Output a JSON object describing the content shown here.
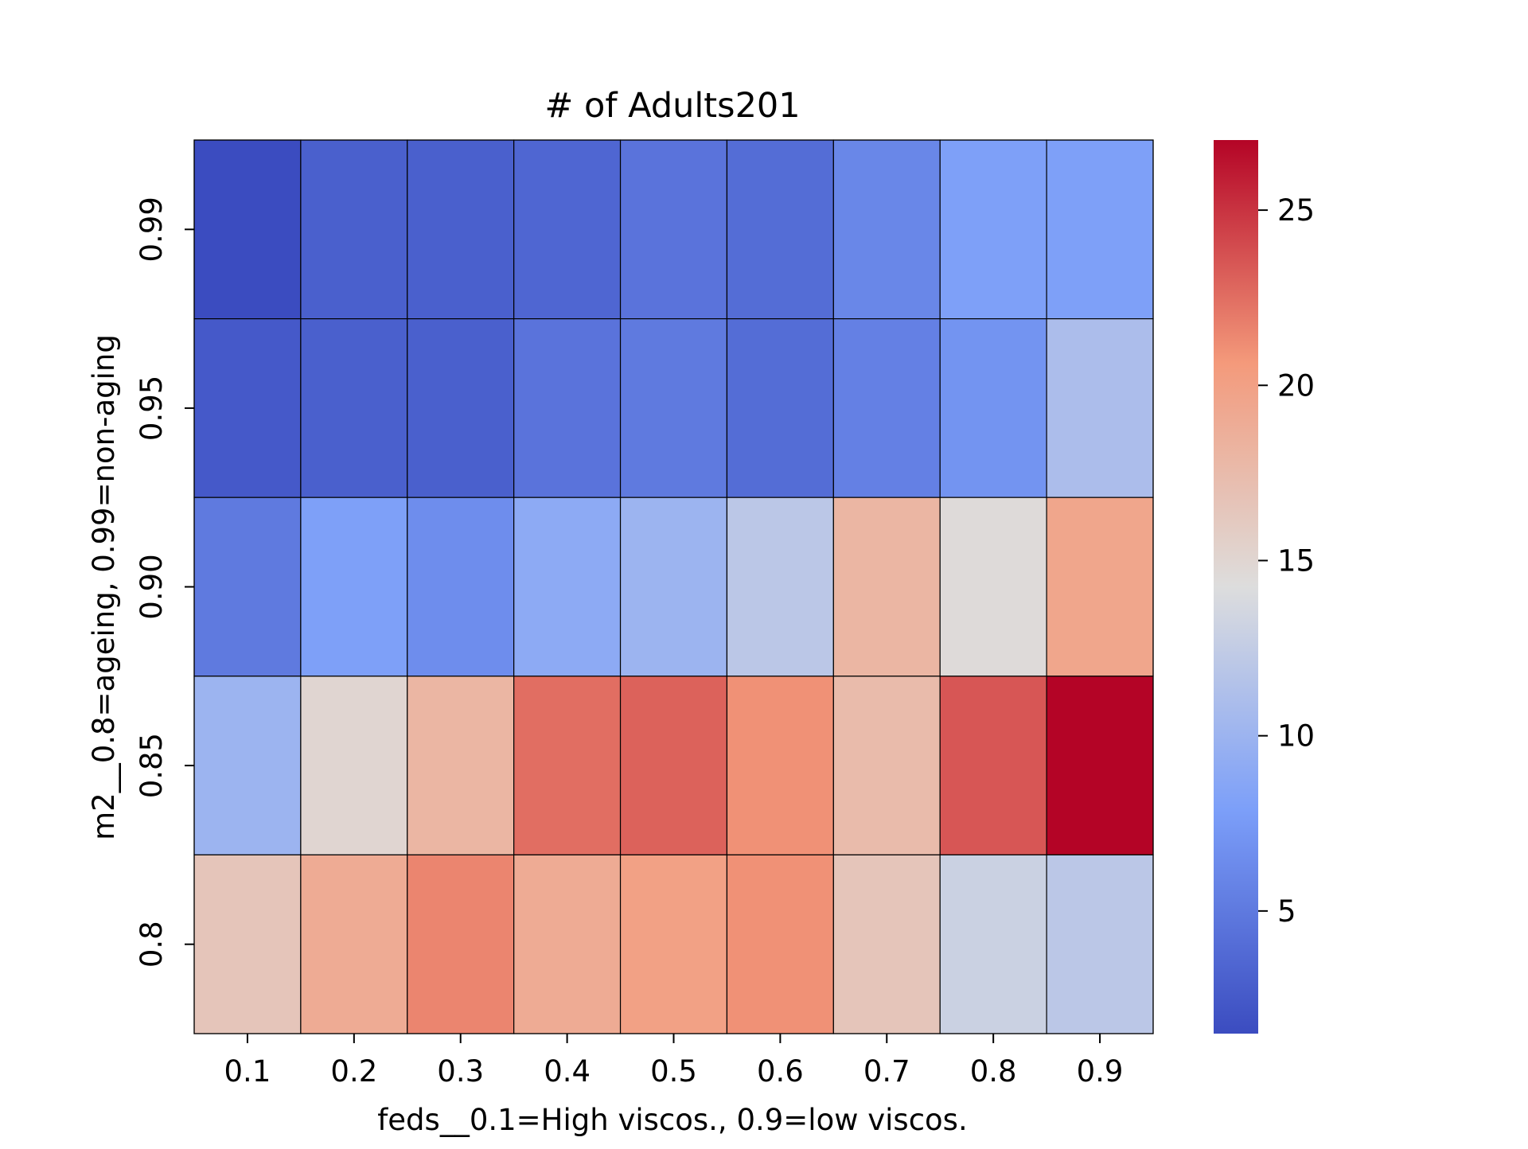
{
  "chart_data": {
    "type": "heatmap",
    "title": "# of Adults201",
    "xlabel": "feds__0.1=High viscos., 0.9=low viscos.",
    "ylabel": "m2__0.8=ageing, 0.99=non-aging",
    "x_categories": [
      "0.1",
      "0.2",
      "0.3",
      "0.4",
      "0.5",
      "0.6",
      "0.7",
      "0.8",
      "0.9"
    ],
    "y_categories": [
      "0.99",
      "0.95",
      "0.90",
      "0.85",
      "0.8"
    ],
    "values": [
      [
        1.5,
        3.0,
        3.0,
        3.5,
        4.5,
        4.0,
        6.0,
        8.0,
        8.0
      ],
      [
        2.5,
        3.0,
        3.0,
        4.5,
        5.0,
        4.0,
        5.5,
        7.0,
        11.0
      ],
      [
        5.0,
        8.0,
        6.5,
        9.0,
        10.0,
        12.0,
        18.0,
        14.5,
        19.5
      ],
      [
        10.0,
        15.0,
        18.0,
        22.5,
        23.0,
        21.0,
        17.5,
        23.5,
        27.0
      ],
      [
        16.5,
        19.0,
        21.5,
        19.0,
        20.0,
        21.0,
        16.5,
        13.0,
        12.0
      ]
    ],
    "vmin": 1.5,
    "vmax": 27.0,
    "colormap": "coolwarm",
    "colorbar": {
      "ticks": [
        5,
        10,
        15,
        20,
        25
      ]
    },
    "grid": false,
    "cell_border_color": "#000000"
  }
}
